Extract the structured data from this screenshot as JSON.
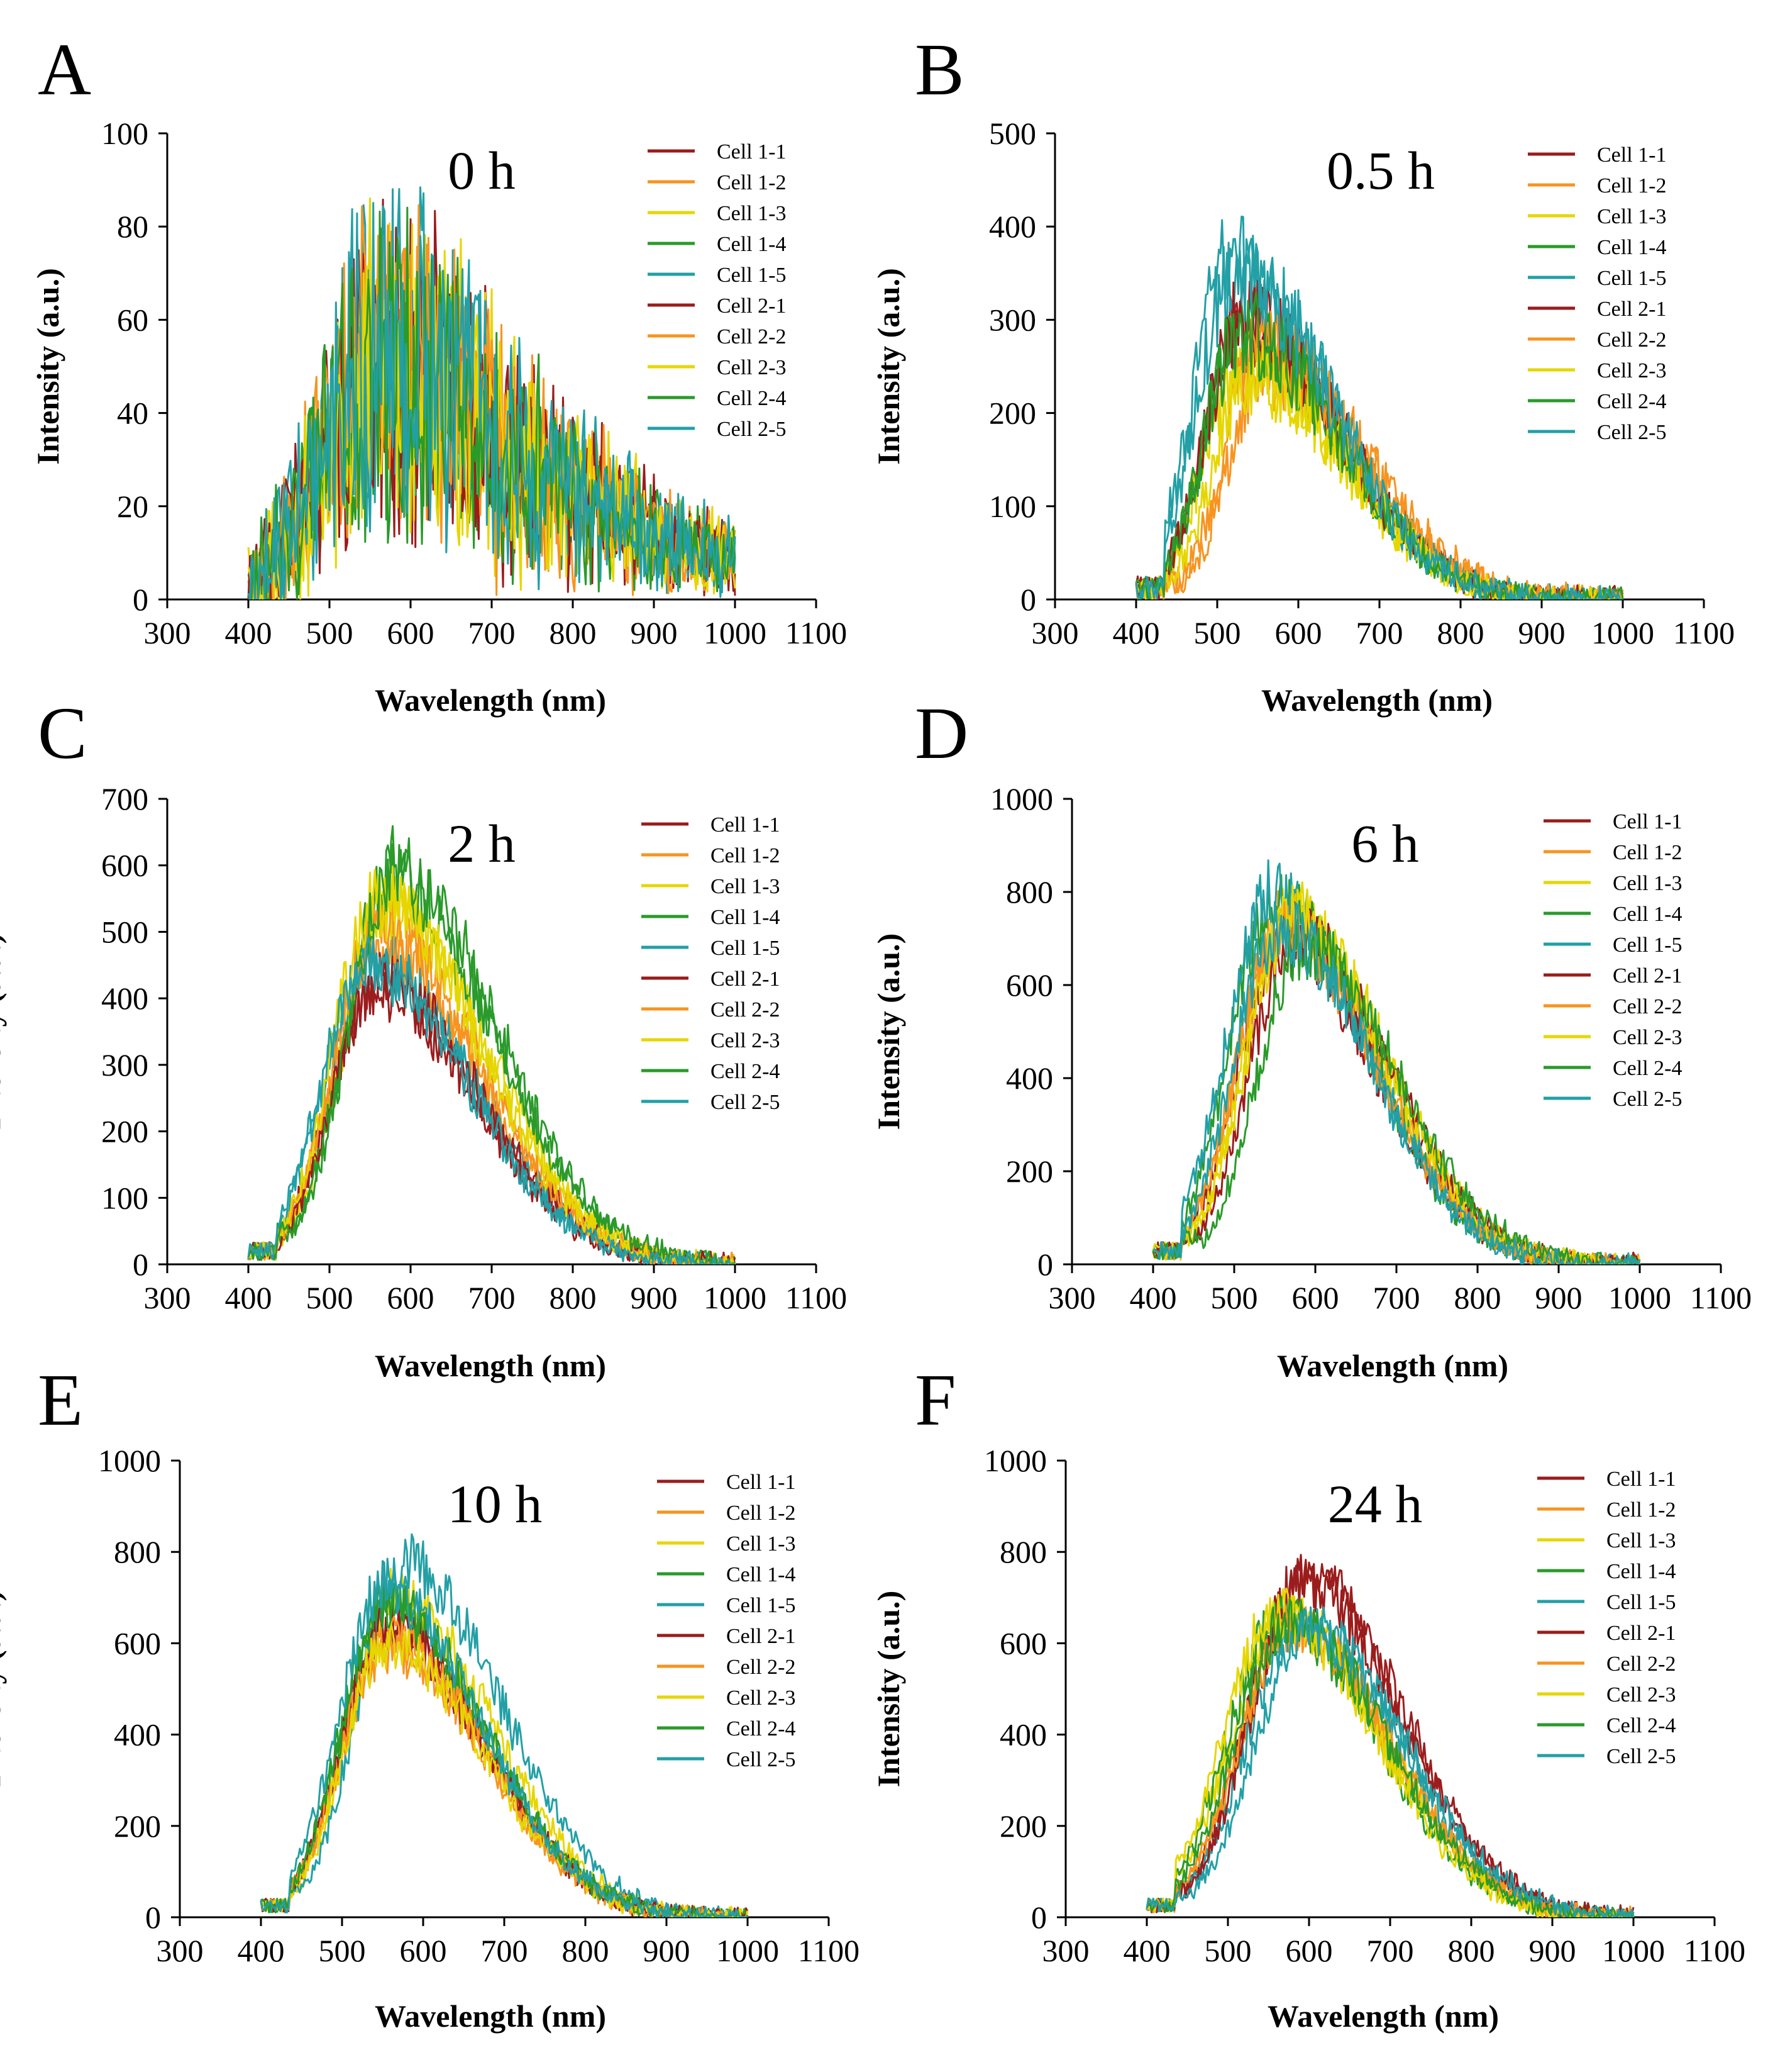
{
  "figure": {
    "xlabel": "Wavelength (nm)",
    "ylabel": "Intensity (a.u.)",
    "series_names": [
      "Cell 1-1",
      "Cell 1-2",
      "Cell 1-3",
      "Cell 1-4",
      "Cell 1-5",
      "Cell 2-1",
      "Cell 2-2",
      "Cell 2-3",
      "Cell 2-4",
      "Cell 2-5"
    ],
    "series_colors": [
      "#9b1c1c",
      "#f79420",
      "#e6d600",
      "#2a9a2a",
      "#22a0a6",
      "#9b1c1c",
      "#f79420",
      "#e6d600",
      "#2a9a2a",
      "#22a0a6"
    ]
  },
  "chart_data": [
    {
      "type": "line",
      "panel": "A",
      "title": "0 h",
      "xlabel": "Wavelength (nm)",
      "ylabel": "Intensity (a.u.)",
      "xlim": [
        300,
        1100
      ],
      "xticks": [
        "300",
        "400",
        "500",
        "600",
        "700",
        "800",
        "900",
        "1000",
        "1100"
      ],
      "ylim": [
        0,
        100
      ],
      "yticks": [
        "0",
        "20",
        "40",
        "60",
        "80",
        "100"
      ],
      "x_range": [
        400,
        1000
      ],
      "onset": 415,
      "peak_x": 560,
      "peak": 50,
      "sigma_left": 70,
      "sigma_right": 190,
      "noise": 0.9,
      "series": [
        {
          "name": "Cell 1-1",
          "scale": 1.0
        },
        {
          "name": "Cell 1-2",
          "scale": 0.95
        },
        {
          "name": "Cell 1-3",
          "scale": 1.05
        },
        {
          "name": "Cell 1-4",
          "scale": 0.9
        },
        {
          "name": "Cell 1-5",
          "scale": 1.1
        },
        {
          "name": "Cell 2-1",
          "scale": 0.95
        },
        {
          "name": "Cell 2-2",
          "scale": 1.0
        },
        {
          "name": "Cell 2-3",
          "scale": 0.9
        },
        {
          "name": "Cell 2-4",
          "scale": 1.05
        },
        {
          "name": "Cell 2-5",
          "scale": 1.0
        }
      ]
    },
    {
      "type": "line",
      "panel": "B",
      "title": "0.5 h",
      "xlabel": "Wavelength (nm)",
      "ylabel": "Intensity (a.u.)",
      "xlim": [
        300,
        1100
      ],
      "xticks": [
        "300",
        "400",
        "500",
        "600",
        "700",
        "800",
        "900",
        "1000",
        "1100"
      ],
      "ylim": [
        0,
        500
      ],
      "yticks": [
        "0",
        "100",
        "200",
        "300",
        "400",
        "500"
      ],
      "x_range": [
        400,
        1000
      ],
      "onset": 435,
      "peak_x": 530,
      "peak": 300,
      "sigma_left": 45,
      "sigma_right": 120,
      "noise": 0.13,
      "series": [
        {
          "name": "Cell 1-1",
          "scale": 1.0
        },
        {
          "name": "Cell 1-2",
          "scale": 0.82,
          "shift": 30
        },
        {
          "name": "Cell 1-3",
          "scale": 0.85
        },
        {
          "name": "Cell 1-4",
          "scale": 0.95
        },
        {
          "name": "Cell 1-5",
          "scale": 1.18,
          "shift": -10
        },
        {
          "name": "Cell 2-1",
          "scale": 1.0
        },
        {
          "name": "Cell 2-2",
          "scale": 0.9,
          "shift": 25
        },
        {
          "name": "Cell 2-3",
          "scale": 0.8,
          "shift": 10
        },
        {
          "name": "Cell 2-4",
          "scale": 0.95
        },
        {
          "name": "Cell 2-5",
          "scale": 1.2,
          "shift": -15
        }
      ]
    },
    {
      "type": "line",
      "panel": "C",
      "title": "2 h",
      "xlabel": "Wavelength (nm)",
      "ylabel": "Intensity (a.u.)",
      "xlim": [
        300,
        1100
      ],
      "xticks": [
        "300",
        "400",
        "500",
        "600",
        "700",
        "800",
        "900",
        "1000",
        "1100"
      ],
      "ylim": [
        0,
        700
      ],
      "yticks": [
        "0",
        "100",
        "200",
        "300",
        "400",
        "500",
        "600",
        "700"
      ],
      "x_range": [
        400,
        1000
      ],
      "onset": 435,
      "peak_x": 560,
      "peak": 500,
      "sigma_left": 55,
      "sigma_right": 125,
      "noise": 0.08,
      "series": [
        {
          "name": "Cell 1-1",
          "scale": 0.82,
          "shift": -5
        },
        {
          "name": "Cell 1-2",
          "scale": 0.95
        },
        {
          "name": "Cell 1-3",
          "scale": 1.06,
          "shift": 10
        },
        {
          "name": "Cell 1-4",
          "scale": 1.16,
          "shift": 15
        },
        {
          "name": "Cell 1-5",
          "scale": 0.92,
          "shift": -10
        },
        {
          "name": "Cell 2-1",
          "scale": 0.85
        },
        {
          "name": "Cell 2-2",
          "scale": 1.0
        },
        {
          "name": "Cell 2-3",
          "scale": 1.1
        },
        {
          "name": "Cell 2-4",
          "scale": 1.2,
          "shift": 20
        },
        {
          "name": "Cell 2-5",
          "scale": 0.9,
          "shift": -15
        }
      ]
    },
    {
      "type": "line",
      "panel": "D",
      "title": "6 h",
      "xlabel": "Wavelength (nm)",
      "ylabel": "Intensity (a.u.)",
      "xlim": [
        300,
        1100
      ],
      "xticks": [
        "300",
        "400",
        "500",
        "600",
        "700",
        "800",
        "900",
        "1000",
        "1100"
      ],
      "ylim": [
        0,
        1000
      ],
      "yticks": [
        "0",
        "200",
        "400",
        "600",
        "800",
        "1000"
      ],
      "x_range": [
        400,
        1000
      ],
      "onset": 435,
      "peak_x": 560,
      "peak": 720,
      "sigma_left": 55,
      "sigma_right": 115,
      "noise": 0.08,
      "series": [
        {
          "name": "Cell 1-1",
          "scale": 0.95
        },
        {
          "name": "Cell 1-2",
          "scale": 1.02
        },
        {
          "name": "Cell 1-3",
          "scale": 1.05,
          "shift": 10
        },
        {
          "name": "Cell 1-4",
          "scale": 1.08,
          "shift": -10
        },
        {
          "name": "Cell 1-5",
          "scale": 1.1,
          "shift": -15
        },
        {
          "name": "Cell 2-1",
          "scale": 0.98,
          "shift": 15
        },
        {
          "name": "Cell 2-2",
          "scale": 1.0
        },
        {
          "name": "Cell 2-3",
          "scale": 1.03,
          "shift": 10
        },
        {
          "name": "Cell 2-4",
          "scale": 0.95,
          "shift": 25
        },
        {
          "name": "Cell 2-5",
          "scale": 1.0,
          "shift": -5
        }
      ]
    },
    {
      "type": "line",
      "panel": "E",
      "title": "10 h",
      "xlabel": "Wavelength (nm)",
      "ylabel": "Intensity (a.u.)",
      "xlim": [
        300,
        1100
      ],
      "xticks": [
        "300",
        "400",
        "500",
        "600",
        "700",
        "800",
        "900",
        "1000",
        "1100"
      ],
      "ylim": [
        0,
        1000
      ],
      "yticks": [
        "0",
        "200",
        "400",
        "600",
        "800",
        "1000"
      ],
      "x_range": [
        400,
        1000
      ],
      "onset": 435,
      "peak_x": 555,
      "peak": 640,
      "sigma_left": 55,
      "sigma_right": 120,
      "noise": 0.07,
      "series": [
        {
          "name": "Cell 1-1",
          "scale": 1.0
        },
        {
          "name": "Cell 1-2",
          "scale": 0.92
        },
        {
          "name": "Cell 1-3",
          "scale": 1.1,
          "shift": 10
        },
        {
          "name": "Cell 1-4",
          "scale": 1.05
        },
        {
          "name": "Cell 1-5",
          "scale": 1.22,
          "shift": 20
        },
        {
          "name": "Cell 2-1",
          "scale": 0.98
        },
        {
          "name": "Cell 2-2",
          "scale": 0.95
        },
        {
          "name": "Cell 2-3",
          "scale": 0.93
        },
        {
          "name": "Cell 2-4",
          "scale": 1.08
        },
        {
          "name": "Cell 2-5",
          "scale": 1.12,
          "shift": -5
        }
      ]
    },
    {
      "type": "line",
      "panel": "F",
      "title": "24 h",
      "xlabel": "Wavelength (nm)",
      "ylabel": "Intensity (a.u.)",
      "xlim": [
        300,
        1100
      ],
      "xticks": [
        "300",
        "400",
        "500",
        "600",
        "700",
        "800",
        "900",
        "1000",
        "1100"
      ],
      "ylim": [
        0,
        1000
      ],
      "yticks": [
        "0",
        "200",
        "400",
        "600",
        "800",
        "1000"
      ],
      "x_range": [
        400,
        1000
      ],
      "onset": 435,
      "peak_x": 580,
      "peak": 650,
      "sigma_left": 65,
      "sigma_right": 120,
      "noise": 0.07,
      "series": [
        {
          "name": "Cell 1-1",
          "scale": 1.13,
          "shift": 10
        },
        {
          "name": "Cell 1-2",
          "scale": 0.97
        },
        {
          "name": "Cell 1-3",
          "scale": 1.02,
          "shift": -10
        },
        {
          "name": "Cell 1-4",
          "scale": 1.0,
          "shift": -15
        },
        {
          "name": "Cell 1-5",
          "scale": 1.0,
          "shift": 10
        },
        {
          "name": "Cell 2-1",
          "scale": 1.15,
          "shift": 15
        },
        {
          "name": "Cell 2-2",
          "scale": 0.98
        },
        {
          "name": "Cell 2-3",
          "scale": 1.03,
          "shift": -20
        },
        {
          "name": "Cell 2-4",
          "scale": 1.0,
          "shift": -5
        },
        {
          "name": "Cell 2-5",
          "scale": 0.96,
          "shift": 20
        }
      ]
    }
  ]
}
